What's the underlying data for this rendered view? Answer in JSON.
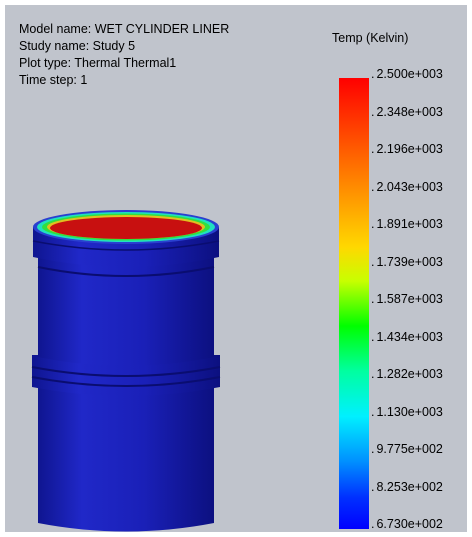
{
  "info": {
    "model_name": "Model name: WET CYLINDER LINER",
    "study_name": "Study name: Study 5",
    "plot_type": "Plot type: Thermal Thermal1",
    "time_step": "Time step: 1"
  },
  "legend": {
    "title": "Temp (Kelvin)",
    "ticks": [
      "2.500e+003",
      "2.348e+003",
      "2.196e+003",
      "2.043e+003",
      "1.891e+003",
      "1.739e+003",
      "1.587e+003",
      "1.434e+003",
      "1.282e+003",
      "1.130e+003",
      "9.775e+002",
      "8.253e+002",
      "6.730e+002"
    ]
  },
  "colors": {
    "background": "#c0c4cc",
    "liner_body": "#1a1fb8",
    "inner_bore": "#c81010",
    "rim_hot": "#00e040"
  }
}
